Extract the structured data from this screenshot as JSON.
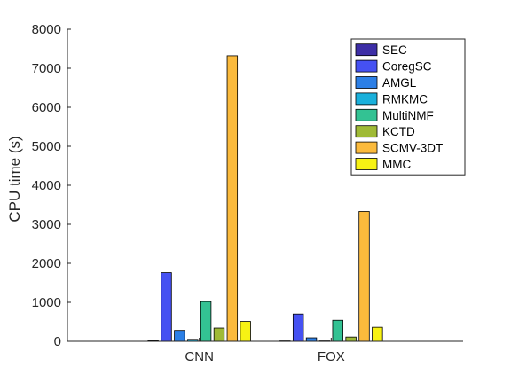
{
  "chart_data": {
    "type": "bar",
    "categories": [
      "CNN",
      "FOX"
    ],
    "ylabel": "CPU time (s)",
    "xlabel": "",
    "ylim": [
      0,
      8000
    ],
    "yticks": [
      "0",
      "1000",
      "2000",
      "3000",
      "4000",
      "5000",
      "6000",
      "7000",
      "8000"
    ],
    "grid": false,
    "legend_position": "top-right",
    "series": [
      {
        "name": "SEC",
        "color": "#3d2ea6",
        "values": [
          20,
          10
        ]
      },
      {
        "name": "CoregSC",
        "color": "#4551f2",
        "values": [
          1760,
          700
        ]
      },
      {
        "name": "AMGL",
        "color": "#2c7fe6",
        "values": [
          280,
          90
        ]
      },
      {
        "name": "RMKMC",
        "color": "#1ab0db",
        "values": [
          50,
          10
        ]
      },
      {
        "name": "MultiNMF",
        "color": "#33c293",
        "values": [
          1020,
          540
        ]
      },
      {
        "name": "KCTD",
        "color": "#9fba36",
        "values": [
          340,
          110
        ]
      },
      {
        "name": "SCMV-3DT",
        "color": "#fbba3c",
        "values": [
          7320,
          3330
        ]
      },
      {
        "name": "MMC",
        "color": "#f7f214",
        "values": [
          510,
          360
        ]
      }
    ]
  }
}
